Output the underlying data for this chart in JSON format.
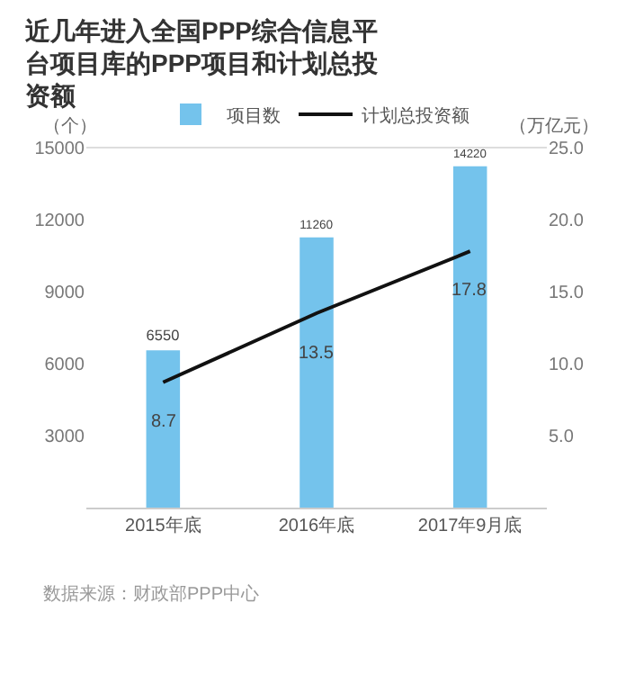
{
  "chart_data": {
    "type": "bar",
    "title": "近几年进入全国PPP综合信息平台项目库的PPP项目和计划总投资额",
    "ylabel": "（个）",
    "y2label": "（万亿元）",
    "categories": [
      "2015年底",
      "2016年底",
      "2017年9月底"
    ],
    "series": [
      {
        "name": "项目数",
        "color": "#74c3ec",
        "values": [
          6550,
          11260,
          14220
        ]
      },
      {
        "name": "计划总投资额",
        "type": "line",
        "axis": "y2",
        "color": "#111111",
        "marker": "none",
        "values": [
          8.7,
          13.5,
          17.8
        ]
      }
    ],
    "ylim": [
      0,
      15000
    ],
    "yticks": [
      3000,
      6000,
      9000,
      12000,
      15000
    ],
    "y2lim": [
      0,
      25
    ],
    "y2ticks": [
      {
        "value": 5,
        "label": "5.0"
      },
      {
        "value": 10,
        "label": "10.0"
      },
      {
        "value": 15,
        "label": "15.0"
      },
      {
        "value": 20,
        "label": "20.0"
      },
      {
        "value": 25,
        "label": "25.0"
      }
    ],
    "data_labels": true,
    "grid": false,
    "legend": "top",
    "annotations": [
      "数据来源：财政部PPP中心"
    ]
  }
}
